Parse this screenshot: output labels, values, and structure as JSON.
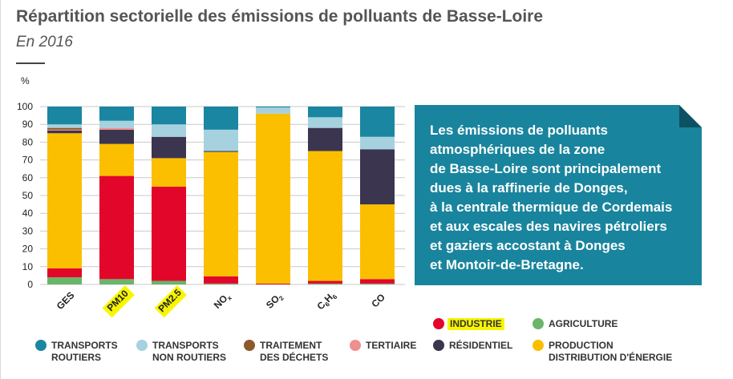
{
  "header": {
    "title": "Répartition sectorielle des émissions de polluants de Basse-Loire",
    "subtitle": "En 2016"
  },
  "callout": {
    "lines": [
      "Les émissions de polluants",
      "atmosphériques de la zone",
      "de Basse-Loire sont principalement",
      "dues à la raffinerie de Donges,",
      "à la centrale thermique de Cordemais",
      "et aux escales des navires pétroliers",
      "et gaziers accostant à Donges",
      "et Montoir-de-Bretagne."
    ]
  },
  "colors": {
    "transports_routiers": "#1a86a1",
    "transports_non_routiers": "#a6d2e0",
    "traitement_des_dechets": "#8b5a2b",
    "tertiaire": "#ef8f8f",
    "residentiel": "#3b3550",
    "production_distribution": "#fbbf00",
    "industrie": "#e2062a",
    "agriculture": "#6ab56b",
    "highlight": "#f7f500",
    "callout_bg": "#19849d"
  },
  "legend": [
    {
      "key": "industrie",
      "label": [
        "INDUSTRIE"
      ],
      "color": "#e2062a",
      "highlight": true
    },
    {
      "key": "agriculture",
      "label": [
        "AGRICULTURE"
      ],
      "color": "#6ab56b"
    },
    {
      "key": "transports_routiers",
      "label": [
        "TRANSPORTS",
        "ROUTIERS"
      ],
      "color": "#1a86a1"
    },
    {
      "key": "transports_non_routiers",
      "label": [
        "TRANSPORTS",
        "NON ROUTIERS"
      ],
      "color": "#a6d2e0"
    },
    {
      "key": "traitement_des_dechets",
      "label": [
        "TRAITEMENT",
        "DES DÉCHETS"
      ],
      "color": "#8b5a2b"
    },
    {
      "key": "tertiaire",
      "label": [
        "TERTIAIRE"
      ],
      "color": "#ef8f8f"
    },
    {
      "key": "residentiel",
      "label": [
        "RÉSIDENTIEL"
      ],
      "color": "#3b3550"
    },
    {
      "key": "production_distribution",
      "label": [
        "PRODUCTION",
        "DISTRIBUTION D'ÉNERGIE"
      ],
      "color": "#fbbf00"
    }
  ],
  "chart_data": {
    "type": "bar",
    "stacked": true,
    "ylabel": "%",
    "ylim": [
      0,
      100
    ],
    "yticks": [
      0,
      10,
      20,
      30,
      40,
      50,
      60,
      70,
      80,
      90,
      100
    ],
    "categories": [
      "GES",
      "PM10",
      "PM2.5",
      "NOx",
      "SO2",
      "C6H6",
      "CO"
    ],
    "category_labels": [
      {
        "text": "GES"
      },
      {
        "text": "PM10",
        "highlight": true
      },
      {
        "text": "PM2.5",
        "highlight": true
      },
      {
        "text": "NO",
        "sub": "x"
      },
      {
        "text": "SO",
        "sub": "2"
      },
      {
        "text": "C",
        "sub": "6",
        "text2": "H",
        "sub2": "6"
      },
      {
        "text": "CO"
      }
    ],
    "series": [
      {
        "name": "AGRICULTURE",
        "key": "agriculture",
        "values": [
          4,
          3,
          2,
          0.5,
          0,
          0.5,
          0.5
        ]
      },
      {
        "name": "INDUSTRIE",
        "key": "industrie",
        "values": [
          5,
          58,
          53,
          4,
          0.5,
          1.5,
          2.5
        ]
      },
      {
        "name": "PRODUCTION DISTRIBUTION D'ÉNERGIE",
        "key": "production_distribution",
        "values": [
          76,
          18,
          16,
          70,
          95.5,
          73,
          42
        ]
      },
      {
        "name": "RÉSIDENTIEL",
        "key": "residentiel",
        "values": [
          1.5,
          8,
          12,
          0.5,
          0,
          13,
          31
        ]
      },
      {
        "name": "TERTIAIRE",
        "key": "tertiaire",
        "values": [
          0.5,
          1,
          0,
          0,
          0,
          0,
          0
        ]
      },
      {
        "name": "TRAITEMENT DES DÉCHETS",
        "key": "traitement_des_dechets",
        "values": [
          1,
          0,
          0,
          0,
          0,
          0,
          0
        ]
      },
      {
        "name": "TRANSPORTS NON ROUTIERS",
        "key": "transports_non_routiers",
        "values": [
          2,
          4,
          7,
          12,
          3.5,
          6,
          7
        ]
      },
      {
        "name": "TRANSPORTS ROUTIERS",
        "key": "transports_routiers",
        "values": [
          10,
          8,
          10,
          13,
          0.5,
          6,
          17
        ]
      }
    ],
    "grid": true,
    "legend_position": "bottom"
  }
}
